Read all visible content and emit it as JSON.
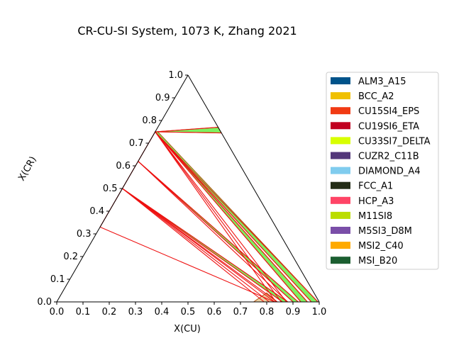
{
  "chart_data": {
    "type": "ternary",
    "title": "CR-CU-SI System, 1073 K, Zhang 2021",
    "xlabel": "X(CU)",
    "ylabel": "X(CR)",
    "xlim": [
      0,
      1
    ],
    "ylim": [
      0,
      1
    ],
    "x_ticks": [
      "0.0",
      "0.1",
      "0.2",
      "0.3",
      "0.4",
      "0.5",
      "0.6",
      "0.7",
      "0.8",
      "0.9",
      "1.0"
    ],
    "y_ticks": [
      "0.0",
      "0.1",
      "0.2",
      "0.3",
      "0.4",
      "0.5",
      "0.6",
      "0.7",
      "0.8",
      "0.9",
      "1.0"
    ],
    "legend": {
      "placement": "right",
      "entries": [
        {
          "name": "ALM3_A15",
          "color": "#00538a"
        },
        {
          "name": "BCC_A2",
          "color": "#f0c000"
        },
        {
          "name": "CU15SI4_EPS",
          "color": "#f13a13"
        },
        {
          "name": "CU19SI6_ETA",
          "color": "#c10020"
        },
        {
          "name": "CU33SI7_DELTA",
          "color": "#d8ff00"
        },
        {
          "name": "CUZR2_C11B",
          "color": "#53377a"
        },
        {
          "name": "DIAMOND_A4",
          "color": "#80ccee"
        },
        {
          "name": "FCC_A1",
          "color": "#232c16"
        },
        {
          "name": "HCP_A3",
          "color": "#ff4466"
        },
        {
          "name": "M11SI8",
          "color": "#bbdd00"
        },
        {
          "name": "M5SI3_D8M",
          "color": "#7a4ea8"
        },
        {
          "name": "MSI2_C40",
          "color": "#ffaa00"
        },
        {
          "name": "MSI_B20",
          "color": "#1b5e30"
        }
      ]
    },
    "regions": [
      {
        "phase": "green",
        "color": "#66ee44",
        "points": [
          [
            0.375,
            0.75
          ],
          [
            0.615,
            0.77
          ],
          [
            0.627,
            0.745
          ]
        ]
      },
      {
        "phase": "green",
        "color": "#66ee44",
        "points": [
          [
            0.375,
            0.75
          ],
          [
            0.385,
            0.75
          ],
          [
            0.995,
            0.0
          ],
          [
            0.97,
            0.0
          ]
        ]
      },
      {
        "phase": "green",
        "color": "#66ee44",
        "points": [
          [
            0.375,
            0.75
          ],
          [
            0.955,
            0.0
          ],
          [
            0.93,
            0.0
          ]
        ]
      },
      {
        "phase": "green",
        "color": "#66ee44",
        "points": [
          [
            0.31,
            0.62
          ],
          [
            0.9,
            0.0
          ],
          [
            0.92,
            0.0
          ]
        ]
      },
      {
        "phase": "green",
        "color": "#66ee44",
        "points": [
          [
            0.25,
            0.5
          ],
          [
            0.86,
            0.0
          ],
          [
            0.88,
            0.0
          ]
        ]
      },
      {
        "phase": "tan",
        "color": "#e8c890",
        "points": [
          [
            0.75,
            0.0
          ],
          [
            0.8,
            0.04
          ],
          [
            0.84,
            0.0
          ]
        ]
      }
    ],
    "tie_lines": [
      [
        [
          0.375,
          0.75
        ],
        [
          0.615,
          0.77
        ]
      ],
      [
        [
          0.375,
          0.75
        ],
        [
          0.627,
          0.745
        ]
      ],
      [
        [
          0.375,
          0.75
        ],
        [
          0.995,
          0.0
        ]
      ],
      [
        [
          0.375,
          0.75
        ],
        [
          0.97,
          0.0
        ]
      ],
      [
        [
          0.375,
          0.75
        ],
        [
          0.955,
          0.0
        ]
      ],
      [
        [
          0.375,
          0.75
        ],
        [
          0.93,
          0.0
        ]
      ],
      [
        [
          0.375,
          0.75
        ],
        [
          0.875,
          0.0
        ]
      ],
      [
        [
          0.375,
          0.75
        ],
        [
          0.855,
          0.0
        ]
      ],
      [
        [
          0.375,
          0.75
        ],
        [
          0.835,
          0.0
        ]
      ],
      [
        [
          0.31,
          0.62
        ],
        [
          0.92,
          0.0
        ]
      ],
      [
        [
          0.31,
          0.62
        ],
        [
          0.9,
          0.0
        ]
      ],
      [
        [
          0.31,
          0.62
        ],
        [
          0.88,
          0.0
        ]
      ],
      [
        [
          0.25,
          0.5
        ],
        [
          0.88,
          0.0
        ]
      ],
      [
        [
          0.25,
          0.5
        ],
        [
          0.86,
          0.0
        ]
      ],
      [
        [
          0.25,
          0.5
        ],
        [
          0.83,
          0.0
        ]
      ],
      [
        [
          0.25,
          0.5
        ],
        [
          0.81,
          0.0
        ]
      ],
      [
        [
          0.25,
          0.5
        ],
        [
          0.79,
          0.0
        ]
      ],
      [
        [
          0.25,
          0.5
        ],
        [
          0.84,
          0.0
        ]
      ],
      [
        [
          0.165,
          0.33
        ],
        [
          0.83,
          0.0
        ]
      ],
      [
        [
          0.31,
          0.62
        ],
        [
          0.375,
          0.75
        ]
      ],
      [
        [
          0.25,
          0.5
        ],
        [
          0.31,
          0.62
        ]
      ],
      [
        [
          0.165,
          0.33
        ],
        [
          0.25,
          0.5
        ]
      ]
    ]
  }
}
